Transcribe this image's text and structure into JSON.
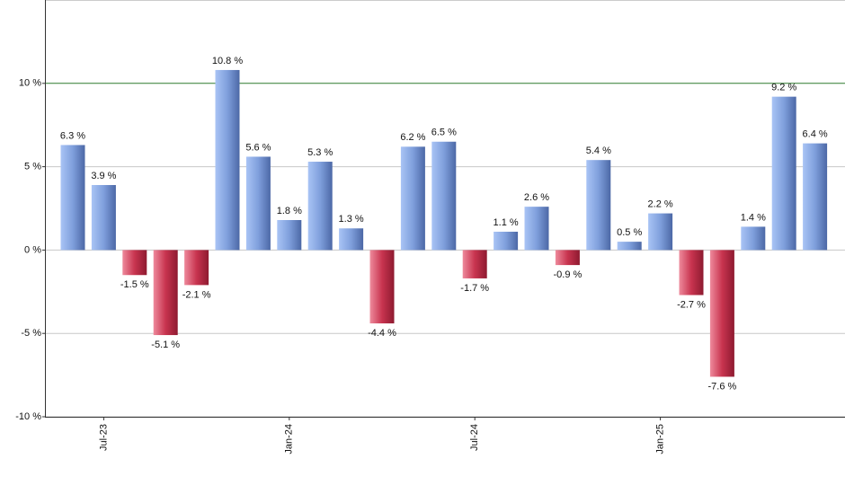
{
  "chart_data": {
    "type": "bar",
    "categories": [
      null,
      "Jul-23",
      null,
      null,
      null,
      null,
      null,
      "Jan-24",
      null,
      null,
      null,
      null,
      null,
      "Jul-24",
      null,
      null,
      null,
      null,
      null,
      "Jan-25",
      null,
      null,
      null,
      null,
      null
    ],
    "values": [
      6.3,
      3.9,
      -1.5,
      -5.1,
      -2.1,
      10.8,
      5.6,
      1.8,
      5.3,
      1.3,
      -4.4,
      6.2,
      6.5,
      -1.7,
      1.1,
      2.6,
      -0.9,
      5.4,
      0.5,
      2.2,
      -2.7,
      -7.6,
      1.4,
      9.2,
      6.4
    ],
    "value_labels": [
      "6.3 %",
      "3.9 %",
      "-1.5 %",
      "-5.1 %",
      "-2.1 %",
      "10.8 %",
      "5.6 %",
      "1.8 %",
      "5.3 %",
      "1.3 %",
      "-4.4 %",
      "6.2 %",
      "6.5 %",
      "-1.7 %",
      "1.1 %",
      "2.6 %",
      "-0.9 %",
      "5.4 %",
      "0.5 %",
      "2.2 %",
      "-2.7 %",
      "-7.6 %",
      "1.4 %",
      "9.2 %",
      "6.4 %"
    ],
    "positive_color": "#7f9fdc",
    "negative_color": "#c8344f",
    "ylim": [
      -10,
      15
    ],
    "yticks": [
      {
        "value": -10,
        "label": "-10 %"
      },
      {
        "value": -5,
        "label": "-5 %"
      },
      {
        "value": 0,
        "label": "0 %"
      },
      {
        "value": 5,
        "label": "5 %"
      },
      {
        "value": 10,
        "label": "10 %"
      }
    ],
    "grid": true,
    "highlight_line": {
      "value": 10,
      "color": "#2f7a2f"
    }
  }
}
